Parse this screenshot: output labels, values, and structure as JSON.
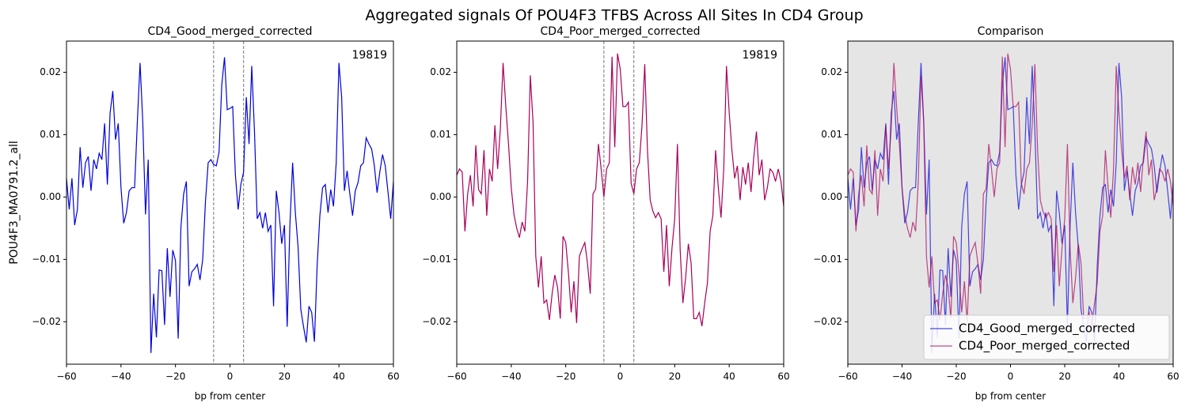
{
  "title": "Aggregated signals Of POU4F3 TFBS Across All Sites In CD4 Group",
  "chart_data": [
    {
      "type": "line",
      "title": "CD4_Good_merged_corrected",
      "xlabel": "bp from center",
      "ylabel": "POU4F3_MA0791.2_all",
      "annotation": "19819",
      "x": [
        -60,
        -59,
        -58,
        -57,
        -56,
        -55,
        -54,
        -53,
        -52,
        -51,
        -50,
        -49,
        -48,
        -47,
        -46,
        -45,
        -44,
        -43,
        -42,
        -41,
        -40,
        -39,
        -38,
        -37,
        -36,
        -35,
        -34,
        -33,
        -32,
        -31,
        -30,
        -29,
        -28,
        -27,
        -26,
        -25,
        -24,
        -23,
        -22,
        -21,
        -20,
        -19,
        -18,
        -17,
        -16,
        -15,
        -14,
        -13,
        -12,
        -11,
        -10,
        -9,
        -8,
        -7,
        -6,
        -5,
        -4,
        -3,
        -2,
        -1,
        0,
        1,
        2,
        3,
        4,
        5,
        6,
        7,
        8,
        9,
        10,
        11,
        12,
        13,
        14,
        15,
        16,
        17,
        18,
        19,
        20,
        21,
        22,
        23,
        24,
        25,
        26,
        27,
        28,
        29,
        30,
        31,
        32,
        33,
        34,
        35,
        36,
        37,
        38,
        39,
        40,
        41,
        42,
        43,
        44,
        45,
        46,
        47,
        48,
        49,
        50,
        51,
        52,
        53,
        54,
        55,
        56,
        57,
        58,
        59,
        60
      ],
      "series": [
        {
          "name": "CD4_Good_merged_corrected",
          "color": "#0000dd",
          "values": [
            0.003,
            -0.002,
            0.003,
            -0.0045,
            -0.002,
            0.008,
            0.0015,
            0.0055,
            0.0065,
            0.001,
            0.006,
            0.0045,
            0.007,
            0.006,
            0.0118,
            0.002,
            0.0135,
            0.017,
            0.0092,
            0.0118,
            0.0015,
            -0.0042,
            -0.0025,
            0.001,
            0.0015,
            0.0015,
            0.012,
            0.0215,
            0.012,
            -0.0028,
            0.006,
            -0.025,
            -0.0155,
            -0.0225,
            -0.0117,
            -0.0118,
            -0.0205,
            -0.0082,
            -0.016,
            -0.0085,
            -0.0102,
            -0.0227,
            -0.0048,
            0.0005,
            0.0025,
            -0.0143,
            -0.012,
            -0.0115,
            -0.0108,
            -0.0133,
            -0.01,
            -0.0008,
            0.0055,
            0.006,
            0.0052,
            0.005,
            0.0072,
            0.018,
            0.0224,
            0.014,
            0.0142,
            0.0145,
            0.0035,
            -0.002,
            0.002,
            0.004,
            0.016,
            0.0085,
            0.021,
            0.0105,
            -0.0035,
            -0.0025,
            -0.005,
            -0.0025,
            -0.0055,
            -0.0045,
            -0.0175,
            0.001,
            -0.0025,
            -0.0075,
            -0.0045,
            -0.0208,
            -0.0045,
            0.0055,
            -0.0025,
            -0.008,
            -0.018,
            -0.0208,
            -0.0233,
            -0.0175,
            -0.0185,
            -0.0232,
            -0.011,
            -0.003,
            0.0015,
            0.002,
            -0.0025,
            0.0012,
            -0.0015,
            0.0055,
            0.0215,
            0.016,
            0.001,
            0.0042,
            0.0005,
            -0.003,
            0.001,
            0.0023,
            0.005,
            0.0055,
            0.0095,
            0.0085,
            0.0077,
            0.005,
            0.0007,
            0.004,
            0.0068,
            0.005,
            0.0008,
            -0.0035,
            0.0025
          ]
        }
      ],
      "vlines": [
        -6,
        5
      ],
      "xlim": [
        -60,
        60
      ],
      "xticks": [
        {
          "value": -60,
          "label": "−60"
        },
        {
          "value": -40,
          "label": "−40"
        },
        {
          "value": -20,
          "label": "−20"
        },
        0,
        20,
        40,
        60
      ],
      "ylim": [
        -0.0268,
        0.025
      ],
      "yticks": [
        {
          "value": -0.02,
          "label": "−0.02"
        },
        {
          "value": -0.01,
          "label": "−0.01"
        },
        {
          "value": 0,
          "label": "0.00"
        },
        {
          "value": 0.01,
          "label": "0.01"
        },
        {
          "value": 0.02,
          "label": "0.02"
        }
      ]
    },
    {
      "type": "line",
      "title": "CD4_Poor_merged_corrected",
      "annotation": "19819",
      "x": [
        -60,
        -59,
        -58,
        -57,
        -56,
        -55,
        -54,
        -53,
        -52,
        -51,
        -50,
        -49,
        -48,
        -47,
        -46,
        -45,
        -44,
        -43,
        -42,
        -41,
        -40,
        -39,
        -38,
        -37,
        -36,
        -35,
        -34,
        -33,
        -32,
        -31,
        -30,
        -29,
        -28,
        -27,
        -26,
        -25,
        -24,
        -23,
        -22,
        -21,
        -20,
        -19,
        -18,
        -17,
        -16,
        -15,
        -14,
        -13,
        -12,
        -11,
        -10,
        -9,
        -8,
        -7,
        -6,
        -5,
        -4,
        -3,
        -2,
        -1,
        0,
        1,
        2,
        3,
        4,
        5,
        6,
        7,
        8,
        9,
        10,
        11,
        12,
        13,
        14,
        15,
        16,
        17,
        18,
        19,
        20,
        21,
        22,
        23,
        24,
        25,
        26,
        27,
        28,
        29,
        30,
        31,
        32,
        33,
        34,
        35,
        36,
        37,
        38,
        39,
        40,
        41,
        42,
        43,
        44,
        45,
        46,
        47,
        48,
        49,
        50,
        51,
        52,
        53,
        54,
        55,
        56,
        57,
        58,
        59,
        60
      ],
      "series": [
        {
          "name": "CD4_Poor_merged_corrected",
          "color": "#a8005a",
          "values": [
            0.0035,
            0.0045,
            0.004,
            -0.0055,
            0.0005,
            0.0035,
            -0.0015,
            0.0083,
            0.0012,
            0.0005,
            0.0075,
            -0.003,
            0.0045,
            0.0025,
            0.0115,
            0.0045,
            0.011,
            0.0215,
            0.0145,
            0.0085,
            0.0015,
            -0.0028,
            -0.005,
            -0.0065,
            -0.004,
            -0.0055,
            0.0025,
            0.0195,
            0.012,
            -0.0095,
            -0.0145,
            -0.0095,
            -0.017,
            -0.0165,
            -0.0197,
            -0.0155,
            -0.0125,
            -0.0145,
            -0.0195,
            -0.0063,
            -0.0073,
            -0.0122,
            -0.0185,
            -0.0135,
            -0.0202,
            -0.0095,
            -0.0083,
            -0.0073,
            -0.0107,
            -0.0155,
            0.0005,
            0.0013,
            0.0085,
            0.0045,
            0.0,
            0.0045,
            0.0055,
            0.0225,
            0.008,
            0.023,
            0.0205,
            0.0145,
            0.0145,
            0.0152,
            0.0022,
            0.0005,
            0.0045,
            0.0055,
            0.0115,
            0.0213,
            0.0075,
            -0.0005,
            -0.0023,
            -0.0033,
            -0.0025,
            -0.0035,
            -0.012,
            -0.0045,
            -0.0143,
            -0.0082,
            -0.0035,
            0.0085,
            -0.0085,
            -0.017,
            -0.013,
            -0.0075,
            -0.0105,
            -0.0195,
            -0.0195,
            -0.0185,
            -0.0207,
            -0.017,
            -0.0138,
            -0.0055,
            -0.003,
            0.0075,
            0.0015,
            -0.0033,
            0.0045,
            0.021,
            0.0135,
            0.0075,
            0.003,
            0.005,
            -0.0005,
            0.0048,
            0.002,
            0.0055,
            0.0008,
            0.0063,
            0.0105,
            0.0035,
            0.006,
            -0.0005,
            0.0015,
            0.0045,
            0.004,
            0.0025,
            0.0045,
            0.0025,
            -0.0015
          ]
        }
      ],
      "vlines": [
        -6,
        5
      ],
      "xlim": [
        -60,
        60
      ],
      "xticks": [
        {
          "value": -60,
          "label": "−60"
        },
        {
          "value": -40,
          "label": "−40"
        },
        {
          "value": -20,
          "label": "−20"
        },
        0,
        20,
        40,
        60
      ],
      "ylim": [
        -0.0268,
        0.025
      ],
      "yticks": [
        {
          "value": -0.02,
          "label": "−0.02"
        },
        {
          "value": -0.01,
          "label": "−0.01"
        },
        {
          "value": 0,
          "label": "0.00"
        },
        {
          "value": 0.01,
          "label": "0.01"
        },
        {
          "value": 0.02,
          "label": "0.02"
        }
      ]
    },
    {
      "type": "line",
      "title": "Comparison",
      "xlabel": "bp from center",
      "facecolor": "#e5e5e5",
      "legend": "lower right",
      "alpha": 0.7,
      "x": [
        -60,
        -59,
        -58,
        -57,
        -56,
        -55,
        -54,
        -53,
        -52,
        -51,
        -50,
        -49,
        -48,
        -47,
        -46,
        -45,
        -44,
        -43,
        -42,
        -41,
        -40,
        -39,
        -38,
        -37,
        -36,
        -35,
        -34,
        -33,
        -32,
        -31,
        -30,
        -29,
        -28,
        -27,
        -26,
        -25,
        -24,
        -23,
        -22,
        -21,
        -20,
        -19,
        -18,
        -17,
        -16,
        -15,
        -14,
        -13,
        -12,
        -11,
        -10,
        -9,
        -8,
        -7,
        -6,
        -5,
        -4,
        -3,
        -2,
        -1,
        0,
        1,
        2,
        3,
        4,
        5,
        6,
        7,
        8,
        9,
        10,
        11,
        12,
        13,
        14,
        15,
        16,
        17,
        18,
        19,
        20,
        21,
        22,
        23,
        24,
        25,
        26,
        27,
        28,
        29,
        30,
        31,
        32,
        33,
        34,
        35,
        36,
        37,
        38,
        39,
        40,
        41,
        42,
        43,
        44,
        45,
        46,
        47,
        48,
        49,
        50,
        51,
        52,
        53,
        54,
        55,
        56,
        57,
        58,
        59,
        60
      ],
      "series": [
        {
          "name": "CD4_Good_merged_corrected",
          "color": "#0000dd",
          "values": [
            0.003,
            -0.002,
            0.003,
            -0.0045,
            -0.002,
            0.008,
            0.0015,
            0.0055,
            0.0065,
            0.001,
            0.006,
            0.0045,
            0.007,
            0.006,
            0.0118,
            0.002,
            0.0135,
            0.017,
            0.0092,
            0.0118,
            0.0015,
            -0.0042,
            -0.0025,
            0.001,
            0.0015,
            0.0015,
            0.012,
            0.0215,
            0.012,
            -0.0028,
            0.006,
            -0.025,
            -0.0155,
            -0.0225,
            -0.0117,
            -0.0118,
            -0.0205,
            -0.0082,
            -0.016,
            -0.0085,
            -0.0102,
            -0.0227,
            -0.0048,
            0.0005,
            0.0025,
            -0.0143,
            -0.012,
            -0.0115,
            -0.0108,
            -0.0133,
            -0.01,
            -0.0008,
            0.0055,
            0.006,
            0.0052,
            0.005,
            0.0072,
            0.018,
            0.0224,
            0.014,
            0.0142,
            0.0145,
            0.0035,
            -0.002,
            0.002,
            0.004,
            0.016,
            0.0085,
            0.021,
            0.0105,
            -0.0035,
            -0.0025,
            -0.005,
            -0.0025,
            -0.0055,
            -0.0045,
            -0.0175,
            0.001,
            -0.0025,
            -0.0075,
            -0.0045,
            -0.0208,
            -0.0045,
            0.0055,
            -0.0025,
            -0.008,
            -0.018,
            -0.0208,
            -0.0233,
            -0.0175,
            -0.0185,
            -0.0232,
            -0.011,
            -0.003,
            0.0015,
            0.002,
            -0.0025,
            0.0012,
            -0.0015,
            0.0055,
            0.0215,
            0.016,
            0.001,
            0.0042,
            0.0005,
            -0.003,
            0.001,
            0.0023,
            0.005,
            0.0055,
            0.0095,
            0.0085,
            0.0077,
            0.005,
            0.0007,
            0.004,
            0.0068,
            0.005,
            0.0008,
            -0.0035,
            0.0025
          ]
        },
        {
          "name": "CD4_Poor_merged_corrected",
          "color": "#a8005a",
          "values": [
            0.0035,
            0.0045,
            0.004,
            -0.0055,
            0.0005,
            0.0035,
            -0.0015,
            0.0083,
            0.0012,
            0.0005,
            0.0075,
            -0.003,
            0.0045,
            0.0025,
            0.0115,
            0.0045,
            0.011,
            0.0215,
            0.0145,
            0.0085,
            0.0015,
            -0.0028,
            -0.005,
            -0.0065,
            -0.004,
            -0.0055,
            0.0025,
            0.0195,
            0.012,
            -0.0095,
            -0.0145,
            -0.0095,
            -0.017,
            -0.0165,
            -0.0197,
            -0.0155,
            -0.0125,
            -0.0145,
            -0.0195,
            -0.0063,
            -0.0073,
            -0.0122,
            -0.0185,
            -0.0135,
            -0.0202,
            -0.0095,
            -0.0083,
            -0.0073,
            -0.0107,
            -0.0155,
            0.0005,
            0.0013,
            0.0085,
            0.0045,
            0.0,
            0.0045,
            0.0055,
            0.0225,
            0.008,
            0.023,
            0.0205,
            0.0145,
            0.0145,
            0.0152,
            0.0022,
            0.0005,
            0.0045,
            0.0055,
            0.0115,
            0.0213,
            0.0075,
            -0.0005,
            -0.0023,
            -0.0033,
            -0.0025,
            -0.0035,
            -0.012,
            -0.0045,
            -0.0143,
            -0.0082,
            -0.0035,
            0.0085,
            -0.0085,
            -0.017,
            -0.013,
            -0.0075,
            -0.0105,
            -0.0195,
            -0.0195,
            -0.0185,
            -0.0207,
            -0.017,
            -0.0138,
            -0.0055,
            -0.003,
            0.0075,
            0.0015,
            -0.0033,
            0.0045,
            0.021,
            0.0135,
            0.0075,
            0.003,
            0.005,
            -0.0005,
            0.0048,
            0.002,
            0.0055,
            0.0008,
            0.0063,
            0.0105,
            0.0035,
            0.006,
            -0.0005,
            0.0015,
            0.0045,
            0.004,
            0.0025,
            0.0045,
            0.0025,
            -0.0015
          ]
        }
      ],
      "xlim": [
        -60,
        60
      ],
      "xticks": [
        {
          "value": -60,
          "label": "−60"
        },
        {
          "value": -40,
          "label": "−40"
        },
        {
          "value": -20,
          "label": "−20"
        },
        0,
        20,
        40,
        60
      ],
      "ylim": [
        -0.0268,
        0.025
      ],
      "yticks": [
        {
          "value": -0.02,
          "label": "−0.02"
        },
        {
          "value": -0.01,
          "label": "−0.01"
        },
        {
          "value": 0,
          "label": "0.00"
        },
        {
          "value": 0.01,
          "label": "0.01"
        },
        {
          "value": 0.02,
          "label": "0.02"
        }
      ]
    }
  ]
}
